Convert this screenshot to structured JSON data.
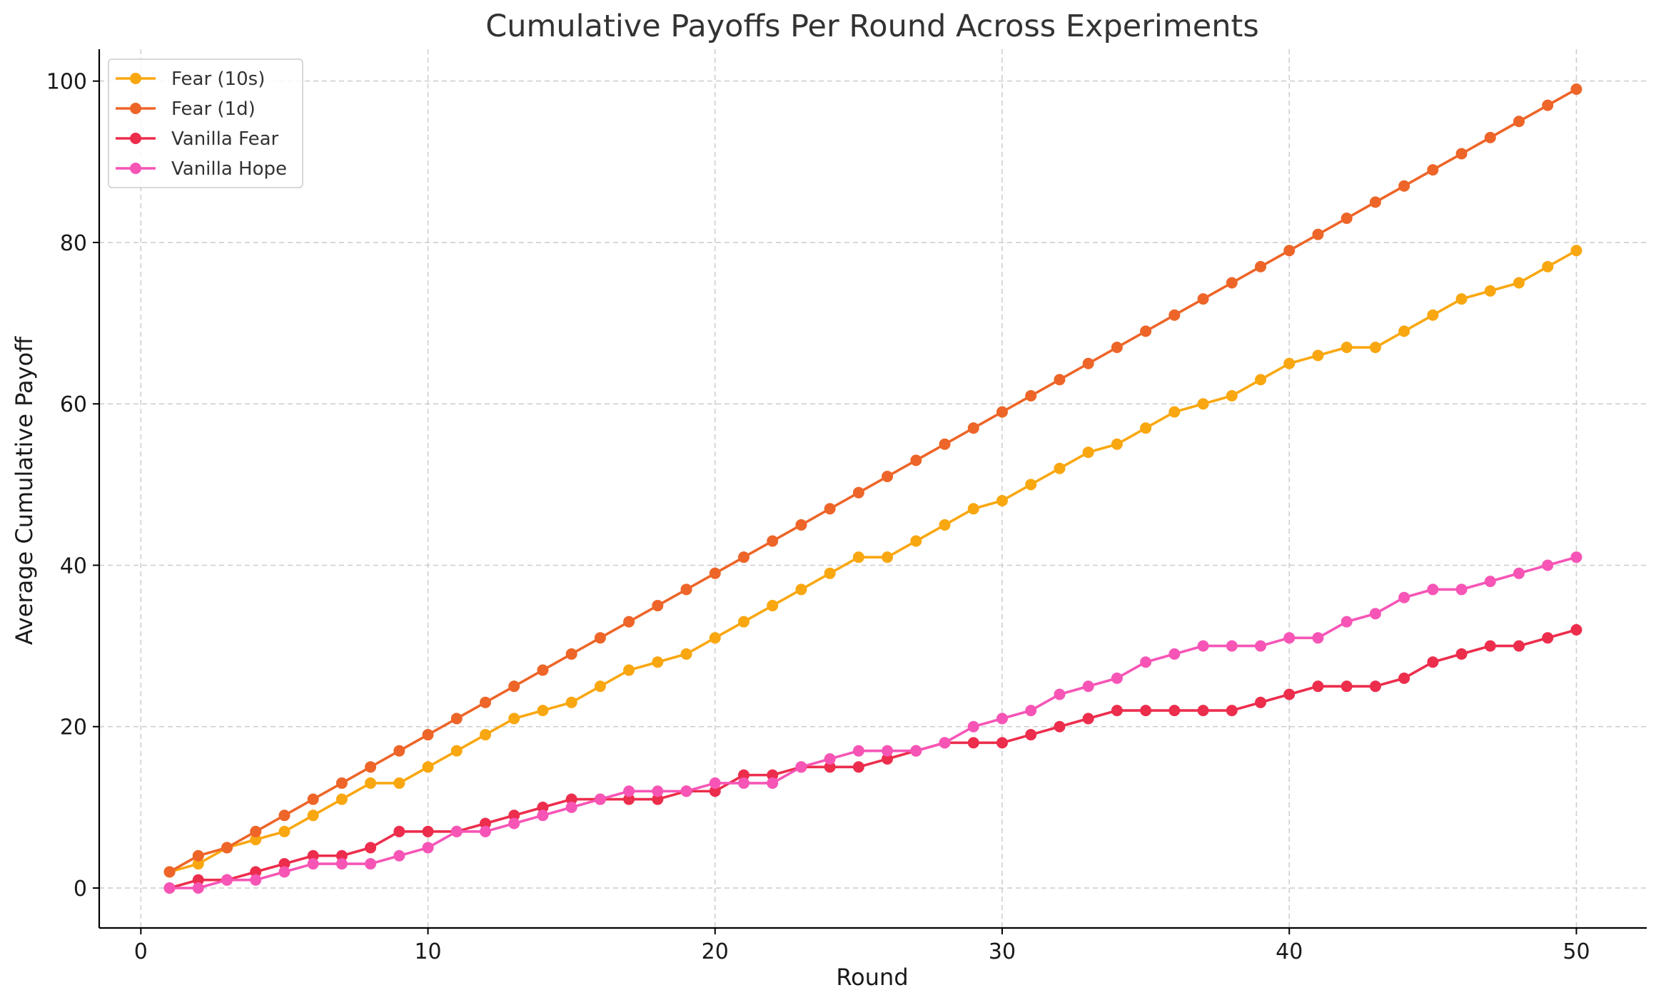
{
  "chart_data": {
    "type": "line",
    "title": "Cumulative Payoffs Per Round Across Experiments",
    "xlabel": "Round",
    "ylabel": "Average Cumulative Payoff",
    "xlim": [
      -1.45,
      52.45
    ],
    "ylim": [
      -4.95,
      103.95
    ],
    "xticks": [
      0,
      10,
      20,
      30,
      40,
      50
    ],
    "yticks": [
      0,
      20,
      40,
      60,
      80,
      100
    ],
    "grid": true,
    "legend_position": "top-left",
    "x": [
      1,
      2,
      3,
      4,
      5,
      6,
      7,
      8,
      9,
      10,
      11,
      12,
      13,
      14,
      15,
      16,
      17,
      18,
      19,
      20,
      21,
      22,
      23,
      24,
      25,
      26,
      27,
      28,
      29,
      30,
      31,
      32,
      33,
      34,
      35,
      36,
      37,
      38,
      39,
      40,
      41,
      42,
      43,
      44,
      45,
      46,
      47,
      48,
      49,
      50
    ],
    "series": [
      {
        "name": "Fear (10s)",
        "color": "#f9a710",
        "values": [
          2,
          3,
          5,
          6,
          7,
          9,
          11,
          13,
          13,
          15,
          17,
          19,
          21,
          22,
          23,
          25,
          27,
          28,
          29,
          31,
          33,
          35,
          37,
          39,
          41,
          41,
          43,
          45,
          47,
          48,
          50,
          52,
          54,
          55,
          57,
          59,
          60,
          61,
          63,
          65,
          66,
          67,
          67,
          69,
          71,
          73,
          74,
          75,
          77,
          79
        ]
      },
      {
        "name": "Fear (1d)",
        "color": "#ed6528",
        "values": [
          2,
          4,
          5,
          7,
          9,
          11,
          13,
          15,
          17,
          19,
          21,
          23,
          25,
          27,
          29,
          31,
          33,
          35,
          37,
          39,
          41,
          43,
          45,
          47,
          49,
          51,
          53,
          55,
          57,
          59,
          61,
          63,
          65,
          67,
          69,
          71,
          73,
          75,
          77,
          79,
          81,
          83,
          85,
          87,
          89,
          91,
          93,
          95,
          97,
          99
        ]
      },
      {
        "name": "Vanilla Fear",
        "color": "#ec2d4c",
        "values": [
          0,
          1,
          1,
          2,
          3,
          4,
          4,
          5,
          7,
          7,
          7,
          8,
          9,
          10,
          11,
          11,
          11,
          11,
          12,
          12,
          14,
          14,
          15,
          15,
          15,
          16,
          17,
          18,
          18,
          18,
          19,
          20,
          21,
          22,
          22,
          22,
          22,
          22,
          23,
          24,
          25,
          25,
          25,
          26,
          28,
          29,
          30,
          30,
          31,
          32
        ]
      },
      {
        "name": "Vanilla Hope",
        "color": "#f655b6",
        "values": [
          0,
          0,
          1,
          1,
          2,
          3,
          3,
          3,
          4,
          5,
          7,
          7,
          8,
          9,
          10,
          11,
          12,
          12,
          12,
          13,
          13,
          13,
          15,
          16,
          17,
          17,
          17,
          18,
          20,
          21,
          22,
          24,
          25,
          26,
          28,
          29,
          30,
          30,
          30,
          31,
          31,
          33,
          34,
          36,
          37,
          37,
          38,
          39,
          40,
          41
        ]
      }
    ]
  }
}
